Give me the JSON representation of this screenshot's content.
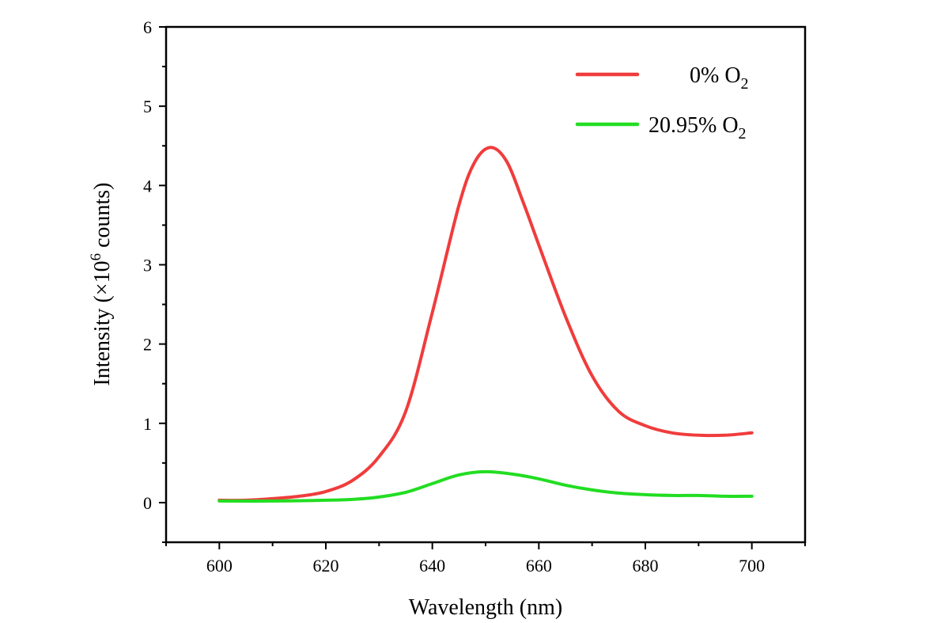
{
  "chart_data": {
    "type": "line",
    "title": "",
    "xlabel": "Wavelength (nm)",
    "ylabel": {
      "main": "Intensity (×10",
      "sup": "6",
      "tail": " counts)"
    },
    "xlim": [
      590,
      710
    ],
    "ylim": [
      -0.5,
      6
    ],
    "xticks": [
      600,
      620,
      640,
      660,
      680,
      700
    ],
    "yticks": [
      0,
      1,
      2,
      3,
      4,
      5,
      6
    ],
    "grid": false,
    "legend_position": "top-right",
    "series": [
      {
        "name": {
          "main": "0%  O",
          "sub": "2"
        },
        "color": "#f03c3c",
        "x": [
          600,
          605,
          610,
          615,
          620,
          625,
          630,
          635,
          640,
          645,
          648,
          651,
          654,
          657,
          660,
          665,
          670,
          675,
          680,
          685,
          690,
          695,
          700
        ],
        "y": [
          0.03,
          0.03,
          0.05,
          0.08,
          0.14,
          0.28,
          0.58,
          1.15,
          2.4,
          3.75,
          4.3,
          4.48,
          4.3,
          3.8,
          3.25,
          2.35,
          1.6,
          1.15,
          0.97,
          0.88,
          0.85,
          0.85,
          0.88
        ]
      },
      {
        "name": {
          "main": "20.95% O",
          "sub": "2"
        },
        "color": "#22dd22",
        "x": [
          600,
          610,
          620,
          625,
          630,
          635,
          640,
          645,
          650,
          655,
          660,
          665,
          670,
          675,
          680,
          685,
          690,
          695,
          700
        ],
        "y": [
          0.02,
          0.02,
          0.03,
          0.04,
          0.07,
          0.13,
          0.24,
          0.35,
          0.39,
          0.36,
          0.3,
          0.22,
          0.16,
          0.12,
          0.1,
          0.09,
          0.09,
          0.08,
          0.08
        ]
      }
    ]
  }
}
